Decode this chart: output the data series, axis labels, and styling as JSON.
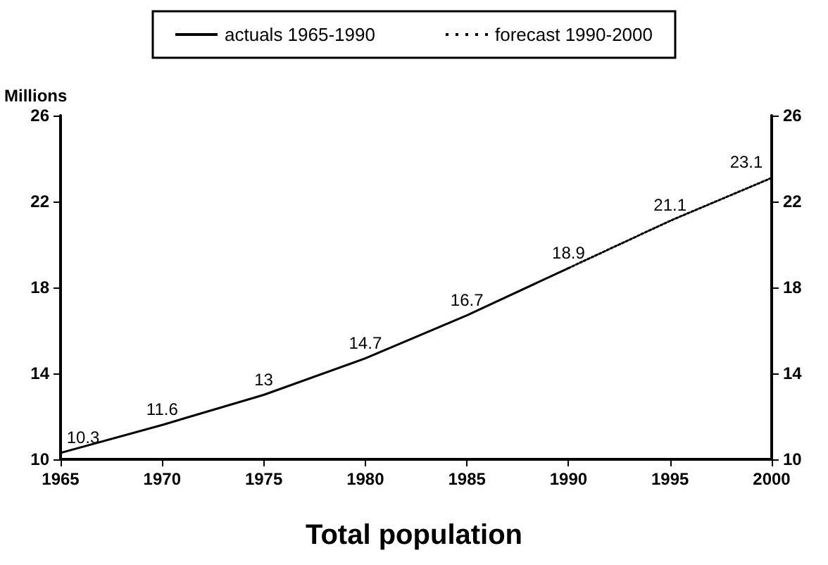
{
  "chart_data": {
    "type": "line",
    "title": "Total population",
    "ylabel": "Millions",
    "xlim": [
      1965,
      2000
    ],
    "xticks": [
      1965,
      1970,
      1975,
      1980,
      1985,
      1990,
      1995,
      2000
    ],
    "ylim": [
      10,
      26
    ],
    "yticks": [
      10,
      14,
      18,
      22,
      26
    ],
    "y2lim": [
      10,
      26
    ],
    "y2ticks": [
      10,
      14,
      18,
      22,
      26
    ],
    "grid": false,
    "legend": "top",
    "marker": "none",
    "series": [
      {
        "name": "actuals 1965-1990",
        "color": "#000000",
        "line_style": "solid",
        "x": [
          1965,
          1970,
          1975,
          1980,
          1985,
          1990
        ],
        "values": [
          10.3,
          11.6,
          13,
          14.7,
          16.7,
          18.9
        ],
        "value_labels": [
          "10.3",
          "11.6",
          "13",
          "14.7",
          "16.7",
          "18.9"
        ]
      },
      {
        "name": "forecast 1990-2000",
        "color": "#000000",
        "line_style": "dotted",
        "x": [
          1990,
          1995,
          2000
        ],
        "values": [
          18.9,
          21.1,
          23.1
        ],
        "value_labels": [
          null,
          "21.1",
          "23.1"
        ]
      }
    ]
  }
}
